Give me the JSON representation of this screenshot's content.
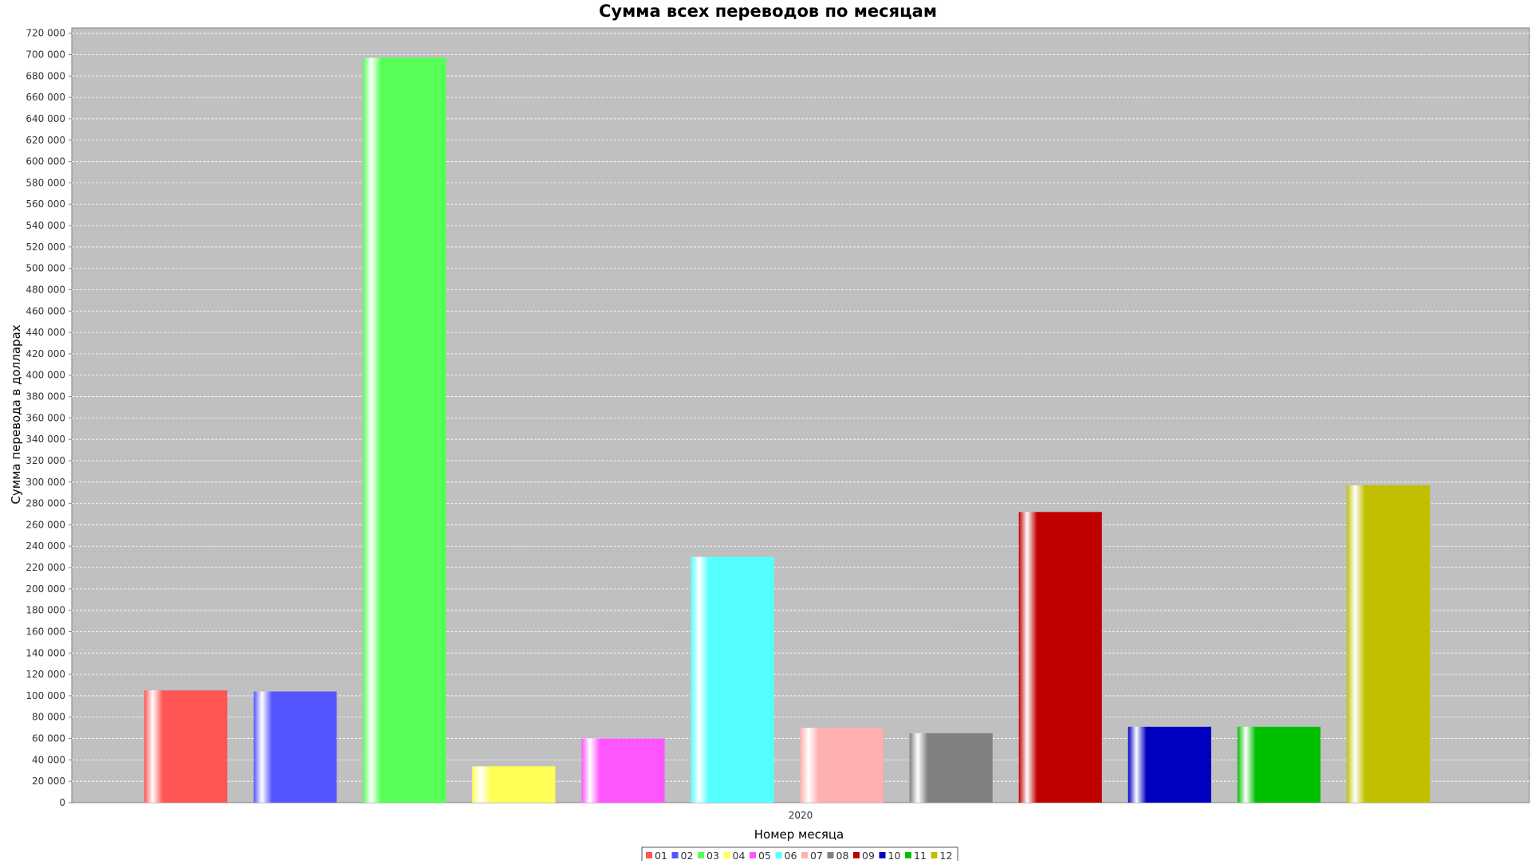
{
  "colors": {
    "plot_background": "#c0c0c0",
    "gridline": "#ffffff",
    "axis": "#808080"
  },
  "chart_data": {
    "type": "bar",
    "title": "Сумма всех переводов по месяцам",
    "xlabel": "Номер месяца",
    "ylabel": "Сумма перевода в долларах",
    "categories": [
      "2020"
    ],
    "ylim": [
      0,
      725000
    ],
    "ytick_step": 20000,
    "grid": true,
    "legend_position": "bottom",
    "series": [
      {
        "name": "01",
        "color": "#ff5555",
        "values": [
          105000
        ]
      },
      {
        "name": "02",
        "color": "#5555ff",
        "values": [
          104000
        ]
      },
      {
        "name": "03",
        "color": "#55ff55",
        "values": [
          697000
        ]
      },
      {
        "name": "04",
        "color": "#ffff55",
        "values": [
          34000
        ]
      },
      {
        "name": "05",
        "color": "#ff55ff",
        "values": [
          60000
        ]
      },
      {
        "name": "06",
        "color": "#55ffff",
        "values": [
          230000
        ]
      },
      {
        "name": "07",
        "color": "#ffafaf",
        "values": [
          70000
        ]
      },
      {
        "name": "08",
        "color": "#808080",
        "values": [
          65000
        ]
      },
      {
        "name": "09",
        "color": "#c00000",
        "values": [
          272000
        ]
      },
      {
        "name": "10",
        "color": "#0000c0",
        "values": [
          71000
        ]
      },
      {
        "name": "11",
        "color": "#00c000",
        "values": [
          71000
        ]
      },
      {
        "name": "12",
        "color": "#c0c000",
        "values": [
          297000
        ]
      }
    ]
  }
}
